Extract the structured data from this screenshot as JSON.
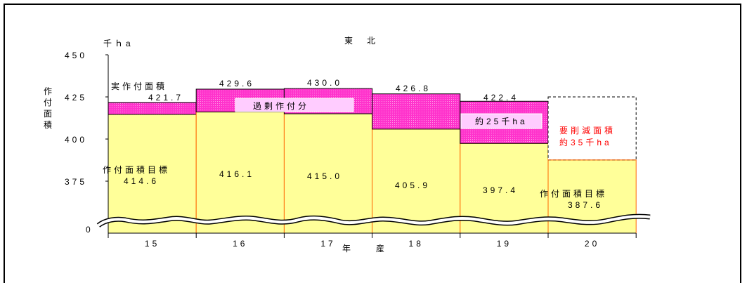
{
  "chart_data": {
    "type": "bar",
    "title": "東　北",
    "unit_label": "千ｈa",
    "ylabel": "作付面積",
    "xlabel": "年　　産",
    "y_ticks": [
      "450",
      "425",
      "400",
      "375",
      "0"
    ],
    "categories": [
      "15",
      "16",
      "17",
      "18",
      "19",
      "20"
    ],
    "series": [
      {
        "values": [
          421.7,
          429.6,
          430.0,
          426.8,
          422.4,
          null
        ]
      },
      {
        "values": [
          414.6,
          416.1,
          415.0,
          405.9,
          397.4,
          387.6
        ]
      }
    ],
    "actual_labels": [
      "421.7",
      "429.6",
      "430.0",
      "426.8",
      "422.4",
      ""
    ],
    "target_labels": [
      "414.6",
      "416.1",
      "415.0",
      "405.9",
      "397.4",
      "387.6"
    ],
    "ylim": [
      370,
      450
    ],
    "y_break": true,
    "annotations": {
      "actual_area": "実作付面積",
      "target_area_left": "作付面積目標",
      "target_area_right": "作付面積目標",
      "excess": "過剰作付分",
      "excess_2007": "約25千ha",
      "required_cut_title": "要削減面積",
      "required_cut_value": "約35千ha"
    },
    "colors": {
      "target_fill": "#ffff99",
      "excess_fill": "#ff33cc",
      "bar_edge": "#ff6600",
      "label_box": "#ffccff",
      "cut_text": "#ff0000"
    }
  }
}
